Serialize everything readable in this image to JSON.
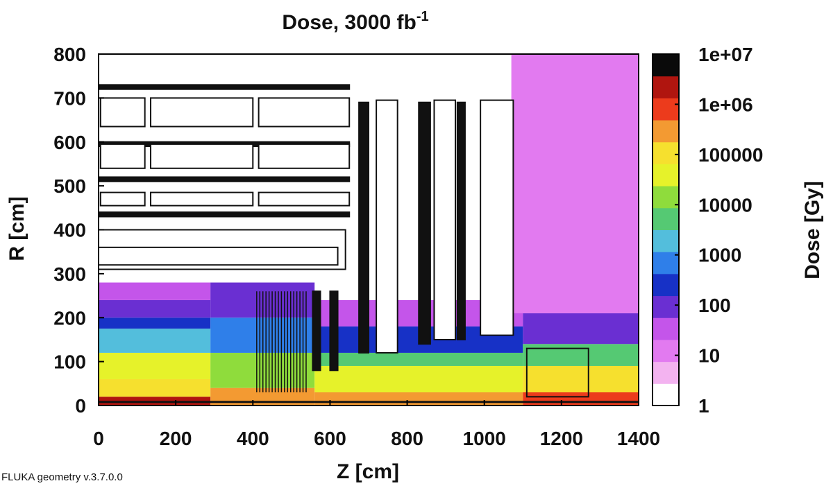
{
  "chart_data": {
    "type": "heatmap",
    "title": "Dose, 3000 fb",
    "title_superscript": "-1",
    "xlabel": "Z [cm]",
    "ylabel": "R [cm]",
    "colorbar_label": "Dose [Gy]",
    "xlim": [
      0,
      1400
    ],
    "ylim": [
      0,
      800
    ],
    "x_ticks": [
      "0",
      "200",
      "400",
      "600",
      "800",
      "1000",
      "1200",
      "1400"
    ],
    "y_ticks": [
      "0",
      "100",
      "200",
      "300",
      "400",
      "500",
      "600",
      "700",
      "800"
    ],
    "colorbar_scale": "log",
    "colorbar_range": [
      1,
      10000000
    ],
    "colorbar_ticks": [
      "1",
      "10",
      "100",
      "1000",
      "10000",
      "100000",
      "1e+06",
      "1e+07"
    ],
    "colorbar_colors": [
      "#ffffff",
      "#f3b3f0",
      "#e27af0",
      "#c455ea",
      "#6a2fd2",
      "#1731c6",
      "#2f7fe9",
      "#53bedc",
      "#55c973",
      "#8fdc3c",
      "#e6f22a",
      "#f6e02e",
      "#f39a32",
      "#ec3b1c",
      "#b0150f",
      "#0a0a0a"
    ],
    "regions": [
      {
        "z": [
          0,
          290
        ],
        "r": [
          0,
          20
        ],
        "level": 6.5
      },
      {
        "z": [
          0,
          290
        ],
        "r": [
          20,
          60
        ],
        "level": 5.2
      },
      {
        "z": [
          0,
          290
        ],
        "r": [
          60,
          120
        ],
        "level": 4.6
      },
      {
        "z": [
          0,
          290
        ],
        "r": [
          120,
          175
        ],
        "level": 3.3
      },
      {
        "z": [
          0,
          290
        ],
        "r": [
          175,
          200
        ],
        "level": 2.5
      },
      {
        "z": [
          0,
          290
        ],
        "r": [
          200,
          240
        ],
        "level": 2.1
      },
      {
        "z": [
          0,
          290
        ],
        "r": [
          240,
          280
        ],
        "level": 1.6
      },
      {
        "z": [
          290,
          560
        ],
        "r": [
          0,
          40
        ],
        "level": 5.6
      },
      {
        "z": [
          290,
          560
        ],
        "r": [
          40,
          120
        ],
        "level": 4.0
      },
      {
        "z": [
          290,
          560
        ],
        "r": [
          120,
          200
        ],
        "level": 2.8
      },
      {
        "z": [
          290,
          560
        ],
        "r": [
          200,
          280
        ],
        "level": 1.9
      },
      {
        "z": [
          560,
          1100
        ],
        "r": [
          0,
          30
        ],
        "level": 5.4
      },
      {
        "z": [
          560,
          1100
        ],
        "r": [
          30,
          90
        ],
        "level": 4.8
      },
      {
        "z": [
          560,
          1100
        ],
        "r": [
          90,
          120
        ],
        "level": 3.8
      },
      {
        "z": [
          560,
          1100
        ],
        "r": [
          120,
          180
        ],
        "level": 2.2
      },
      {
        "z": [
          560,
          1100
        ],
        "r": [
          180,
          240
        ],
        "level": 1.5
      },
      {
        "z": [
          1100,
          1400
        ],
        "r": [
          0,
          30
        ],
        "level": 5.9
      },
      {
        "z": [
          1100,
          1400
        ],
        "r": [
          30,
          90
        ],
        "level": 5.0
      },
      {
        "z": [
          1100,
          1400
        ],
        "r": [
          90,
          140
        ],
        "level": 3.9
      },
      {
        "z": [
          1100,
          1400
        ],
        "r": [
          140,
          210
        ],
        "level": 2.1
      },
      {
        "z": [
          1070,
          1400
        ],
        "r": [
          210,
          800
        ],
        "level": 1.2
      }
    ]
  },
  "footer": "FLUKA geometry v.3.7.0.0"
}
